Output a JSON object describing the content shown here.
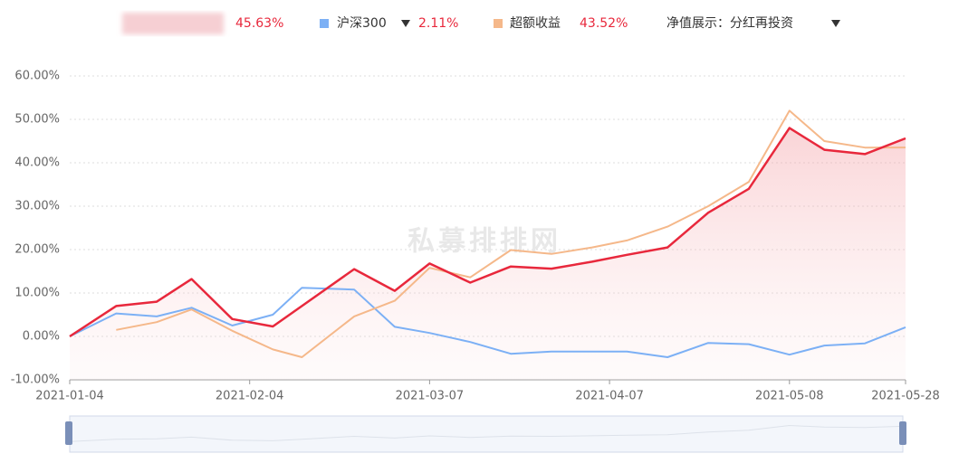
{
  "chart_data": {
    "type": "line",
    "x": [
      "2021-01-04",
      "2021-01-12",
      "2021-01-19",
      "2021-01-25",
      "2021-02-01",
      "2021-02-08",
      "2021-02-13",
      "2021-02-22",
      "2021-03-01",
      "2021-03-07",
      "2021-03-14",
      "2021-03-21",
      "2021-03-28",
      "2021-04-04",
      "2021-04-10",
      "2021-04-17",
      "2021-04-24",
      "2021-05-01",
      "2021-05-08",
      "2021-05-14",
      "2021-05-21",
      "2021-05-28"
    ],
    "xlim": [
      "2021-01-04",
      "2021-05-28"
    ],
    "xticks": [
      "2021-01-04",
      "2021-02-04",
      "2021-03-07",
      "2021-04-07",
      "2021-05-08",
      "2021-05-28"
    ],
    "ylim": [
      -10,
      60
    ],
    "yticks": [
      {
        "value": -10,
        "label": "-10.00%"
      },
      {
        "value": 0,
        "label": "0.00%"
      },
      {
        "value": 10,
        "label": "10.00%"
      },
      {
        "value": 20,
        "label": "20.00%"
      },
      {
        "value": 30,
        "label": "30.00%"
      },
      {
        "value": 40,
        "label": "40.00%"
      },
      {
        "value": 50,
        "label": "50.00%"
      },
      {
        "value": 60,
        "label": "60.00%"
      }
    ],
    "grid": true,
    "series": [
      {
        "color": "#e8283c",
        "fill": true,
        "latest_label": "45.63%",
        "values": [
          0,
          7.0,
          8.0,
          13.2,
          4.0,
          2.3,
          7.0,
          15.5,
          10.5,
          16.8,
          12.4,
          16.1,
          15.6,
          17.2,
          18.8,
          20.5,
          28.5,
          34.0,
          48.0,
          43.0,
          42.0,
          45.63
        ]
      },
      {
        "name": "沪深300",
        "color": "#7cb0f5",
        "latest_label": "2.11%",
        "values": [
          0,
          5.3,
          4.6,
          6.6,
          2.5,
          5.0,
          11.2,
          10.8,
          2.2,
          0.8,
          -1.3,
          -4.0,
          -3.5,
          -3.5,
          -3.5,
          -4.8,
          -1.5,
          -1.8,
          -4.2,
          -2.1,
          -1.6,
          2.11
        ]
      },
      {
        "name": "超额收益",
        "color": "#f5b88a",
        "latest_label": "43.52%",
        "values": [
          null,
          1.5,
          3.3,
          6.2,
          1.3,
          -3.0,
          -4.8,
          4.6,
          8.2,
          15.8,
          13.6,
          19.9,
          19.0,
          20.5,
          22.1,
          25.3,
          30.0,
          35.6,
          52.0,
          45.0,
          43.5,
          43.52
        ]
      }
    ],
    "display_mode": "净值展示：分红再投资",
    "watermark": "私募排排网"
  }
}
